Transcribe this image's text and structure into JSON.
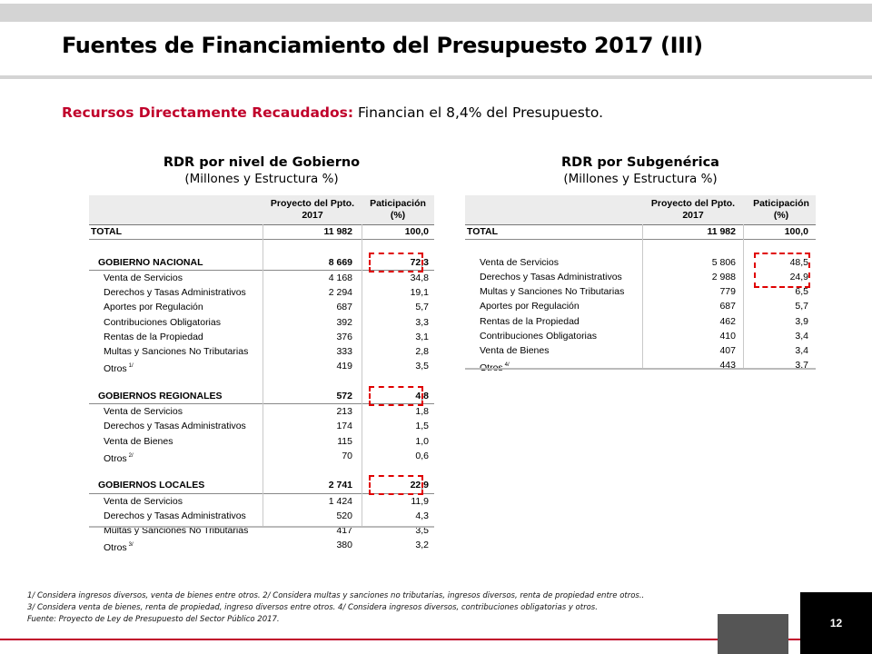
{
  "title": "Fuentes de Financiamiento del Presupuesto 2017 (III)",
  "subtitle": {
    "label": "Recursos Directamente Recaudados:",
    "text": " Financian el 8,4% del Presupuesto."
  },
  "left_panel": {
    "title": "RDR por nivel de Gobierno",
    "subtitle": "(Millones y Estructura %)",
    "col1_header": "Proyecto del Ppto. 2017",
    "col2_header": "Paticipación (%)",
    "rows": [
      {
        "label": "TOTAL",
        "v1": "11 982",
        "v2": "100,0",
        "bold": true,
        "indent": 0
      },
      {
        "label": "GOBIERNO NACIONAL",
        "v1": "8 669",
        "v2": "72,3",
        "bold": true,
        "indent": 1,
        "highlight": true
      },
      {
        "label": "Venta de Servicios",
        "v1": "4 168",
        "v2": "34,8",
        "indent": 2
      },
      {
        "label": "Derechos y Tasas Administrativos",
        "v1": "2 294",
        "v2": "19,1",
        "indent": 2
      },
      {
        "label": "Aportes por Regulación",
        "v1": "687",
        "v2": "5,7",
        "indent": 2
      },
      {
        "label": "Contribuciones Obligatorias",
        "v1": "392",
        "v2": "3,3",
        "indent": 2
      },
      {
        "label": "Rentas de la Propiedad",
        "v1": "376",
        "v2": "3,1",
        "indent": 2
      },
      {
        "label": "Multas y Sanciones No Tributarias",
        "v1": "333",
        "v2": "2,8",
        "indent": 2
      },
      {
        "label": "Otros",
        "note": "1/",
        "v1": "419",
        "v2": "3,5",
        "indent": 2
      },
      {
        "label": "GOBIERNOS REGIONALES",
        "v1": "572",
        "v2": "4,8",
        "bold": true,
        "indent": 1,
        "highlight": true
      },
      {
        "label": "Venta de Servicios",
        "v1": "213",
        "v2": "1,8",
        "indent": 2
      },
      {
        "label": "Derechos y Tasas Administrativos",
        "v1": "174",
        "v2": "1,5",
        "indent": 2
      },
      {
        "label": "Venta de Bienes",
        "v1": "115",
        "v2": "1,0",
        "indent": 2
      },
      {
        "label": "Otros",
        "note": "2/",
        "v1": "70",
        "v2": "0,6",
        "indent": 2
      },
      {
        "label": "GOBIERNOS LOCALES",
        "v1": "2 741",
        "v2": "22,9",
        "bold": true,
        "indent": 1,
        "highlight": true
      },
      {
        "label": "Venta de Servicios",
        "v1": "1 424",
        "v2": "11,9",
        "indent": 2
      },
      {
        "label": "Derechos y Tasas Administrativos",
        "v1": "520",
        "v2": "4,3",
        "indent": 2
      },
      {
        "label": "Multas y Sanciones No Tributarias",
        "v1": "417",
        "v2": "3,5",
        "indent": 2
      },
      {
        "label": "Otros",
        "note": "3/",
        "v1": "380",
        "v2": "3,2",
        "indent": 2
      }
    ]
  },
  "right_panel": {
    "title": "RDR por Subgenérica",
    "subtitle": "(Millones y Estructura %)",
    "col1_header": "Proyecto del Ppto. 2017",
    "col2_header": "Paticipación (%)",
    "rows": [
      {
        "label": "TOTAL",
        "v1": "11 982",
        "v2": "100,0",
        "bold": true,
        "indent": 0
      },
      {
        "label": "Venta de Servicios",
        "v1": "5 806",
        "v2": "48,5",
        "indent": 2,
        "highlight_start": true
      },
      {
        "label": "Derechos y Tasas Administrativos",
        "v1": "2 988",
        "v2": "24,9",
        "indent": 2
      },
      {
        "label": "Multas y Sanciones No Tributarias",
        "v1": "779",
        "v2": "6,5",
        "indent": 2
      },
      {
        "label": "Aportes por Regulación",
        "v1": "687",
        "v2": "5,7",
        "indent": 2
      },
      {
        "label": "Rentas de la Propiedad",
        "v1": "462",
        "v2": "3,9",
        "indent": 2
      },
      {
        "label": "Contribuciones Obligatorias",
        "v1": "410",
        "v2": "3,4",
        "indent": 2
      },
      {
        "label": "Venta de Bienes",
        "v1": "407",
        "v2": "3,4",
        "indent": 2
      },
      {
        "label": "Otros",
        "note": "4/",
        "v1": "443",
        "v2": "3,7",
        "indent": 2
      }
    ]
  },
  "footnotes": [
    "1/ Considera ingresos diversos, venta de bienes entre otros.    2/ Considera multas y sanciones no tributarias, ingresos diversos, renta de propiedad entre otros..",
    "3/ Considera venta de bienes, renta de propiedad, ingreso diversos entre otros.   4/ Considera ingresos diversos, contribuciones obligatorias y otros.",
    "Fuente: Proyecto de Ley de Presupuesto del Sector Público 2017."
  ],
  "page_number": "12",
  "colors": {
    "accent": "#c0002a",
    "highlight_dash": "#e00000",
    "header_bg": "#ececec"
  }
}
